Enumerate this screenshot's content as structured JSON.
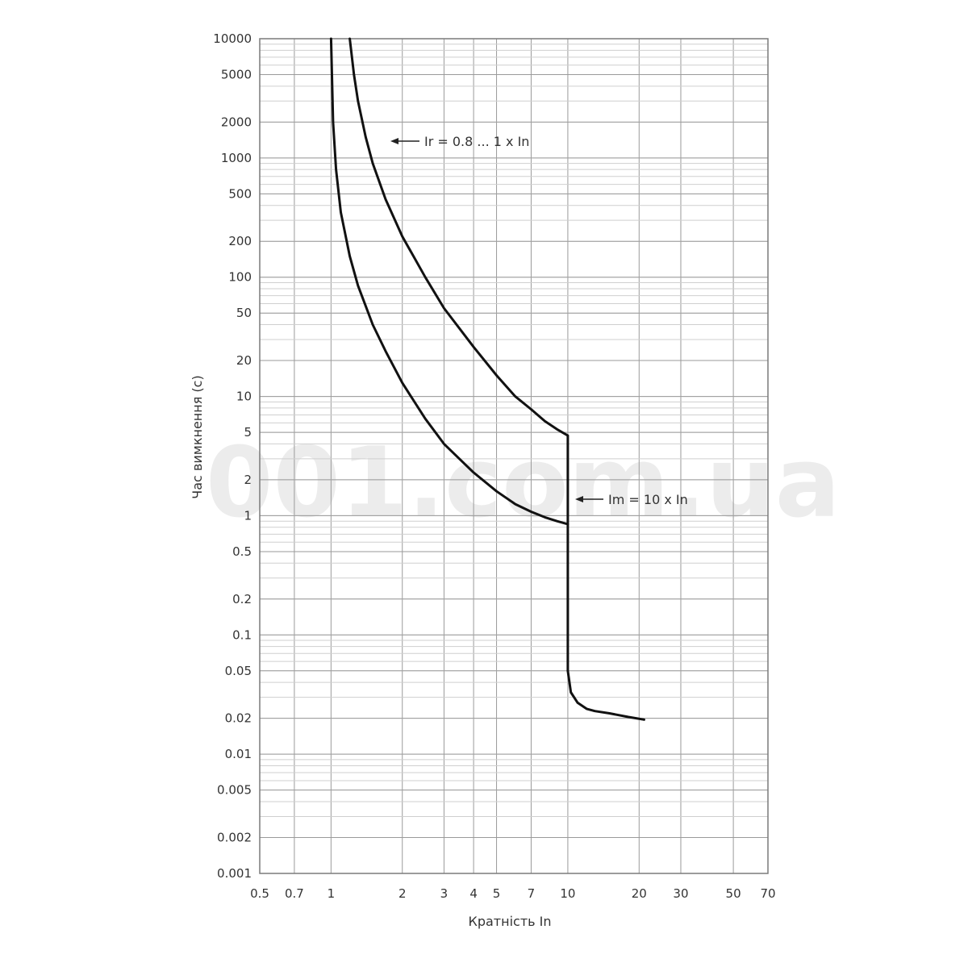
{
  "chart_data": {
    "type": "line",
    "xlabel": "Кратність In",
    "ylabel": "Час вимкнення (с)",
    "x_scale": "log",
    "y_scale": "log",
    "xlim": [
      0.5,
      70
    ],
    "ylim": [
      0.001,
      10000
    ],
    "grid": true,
    "x_ticks": [
      0.5,
      0.7,
      1,
      2,
      3,
      4,
      5,
      7,
      10,
      20,
      30,
      50,
      70
    ],
    "x_tick_labels": [
      "0.5",
      "0.7",
      "1",
      "2",
      "3",
      "4",
      "5",
      "7",
      "10",
      "20",
      "30",
      "50",
      "70"
    ],
    "y_ticks": [
      0.001,
      0.002,
      0.005,
      0.01,
      0.02,
      0.05,
      0.1,
      0.2,
      0.5,
      1,
      2,
      5,
      10,
      20,
      50,
      100,
      200,
      500,
      1000,
      2000,
      5000,
      10000
    ],
    "y_tick_labels": [
      "0.001",
      "0.002",
      "0.005",
      "0.01",
      "0.02",
      "0.05",
      "0.1",
      "0.2",
      "0.5",
      "1",
      "2",
      "5",
      "10",
      "20",
      "50",
      "100",
      "200",
      "500",
      "1000",
      "2000",
      "5000",
      "10000"
    ],
    "series": [
      {
        "x": [
          1.0,
          1.02,
          1.05,
          1.1,
          1.2,
          1.3,
          1.5,
          1.7,
          2,
          2.5,
          3,
          4,
          5,
          6,
          7,
          8,
          9,
          10,
          10,
          10,
          10.3,
          11,
          12,
          13,
          15,
          18,
          21
        ],
        "y": [
          10000,
          2000,
          800,
          350,
          150,
          85,
          40,
          24,
          13,
          6.5,
          4.0,
          2.3,
          1.6,
          1.25,
          1.08,
          0.97,
          0.9,
          0.85,
          0.1,
          0.05,
          0.033,
          0.027,
          0.024,
          0.023,
          0.022,
          0.0205,
          0.0195
        ]
      },
      {
        "x": [
          1.2,
          1.25,
          1.3,
          1.4,
          1.5,
          1.7,
          2,
          2.5,
          3,
          4,
          5,
          6,
          7,
          8,
          9,
          10,
          10
        ],
        "y": [
          10000,
          5000,
          3000,
          1500,
          900,
          450,
          220,
          100,
          55,
          26,
          15,
          10,
          7.8,
          6.2,
          5.3,
          4.7,
          0.85
        ]
      }
    ],
    "annotations": [
      {
        "text": "Ir = 0.8 ... 1 x In",
        "x": 1.3,
        "y": 1400
      },
      {
        "text": "Im = 10 x In",
        "x": 10.2,
        "y": 1.2
      }
    ]
  },
  "watermark": "001.com.ua"
}
